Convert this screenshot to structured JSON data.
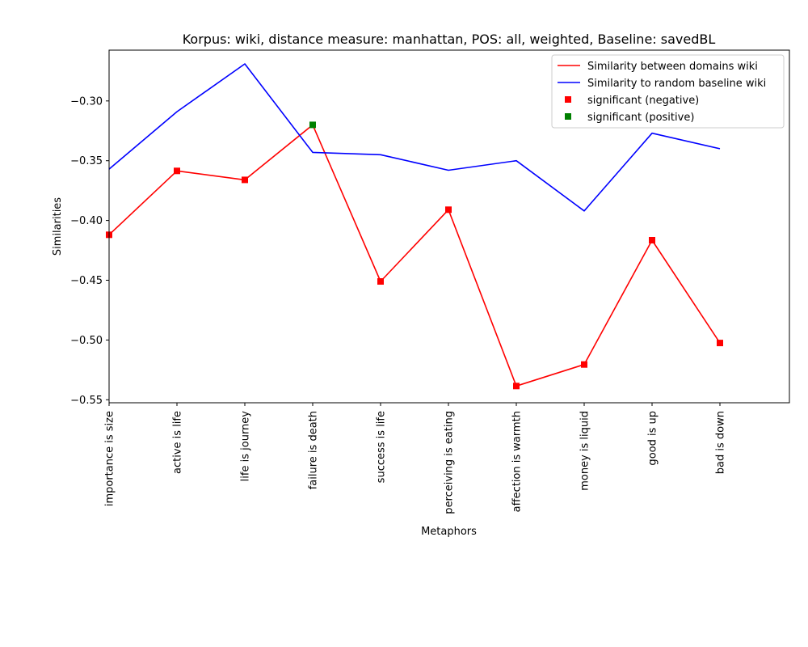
{
  "chart_data": {
    "type": "line",
    "title": "Korpus: wiki, distance measure: manhattan, POS: all, weighted, Baseline: savedBL",
    "xlabel": "Metaphors",
    "ylabel": "Similarities",
    "categories": [
      "importance is size",
      "active is life",
      "life is journey",
      "failure is death",
      "success is life",
      "perceiving is eating",
      "affection is warmth",
      "money is liquid",
      "good is up",
      "bad is down"
    ],
    "ylim": [
      -0.5525,
      -0.2575
    ],
    "yticks": [
      -0.3,
      -0.35,
      -0.4,
      -0.45,
      -0.5,
      -0.55
    ],
    "ytick_labels": [
      "−0.30",
      "−0.35",
      "−0.40",
      "−0.45",
      "−0.50",
      "−0.55"
    ],
    "grid": false,
    "legend_position": "top-right",
    "series": [
      {
        "name": "Similarity between domains wiki",
        "color": "#ff0000",
        "values": [
          -0.412,
          -0.3585,
          -0.366,
          -0.32,
          -0.451,
          -0.391,
          -0.5385,
          -0.5205,
          -0.4165,
          -0.5025
        ]
      },
      {
        "name": "Similarity to random baseline wiki",
        "color": "#0000ff",
        "values": [
          -0.357,
          -0.309,
          -0.269,
          -0.343,
          -0.345,
          -0.358,
          -0.35,
          -0.392,
          -0.327,
          -0.34
        ]
      }
    ],
    "markers": [
      {
        "name": "significant (negative)",
        "color": "#ff0000",
        "indices": [
          0,
          1,
          2,
          4,
          5,
          6,
          7,
          8,
          9
        ]
      },
      {
        "name": "significant (positive)",
        "color": "#008000",
        "indices": [
          3
        ]
      }
    ]
  }
}
